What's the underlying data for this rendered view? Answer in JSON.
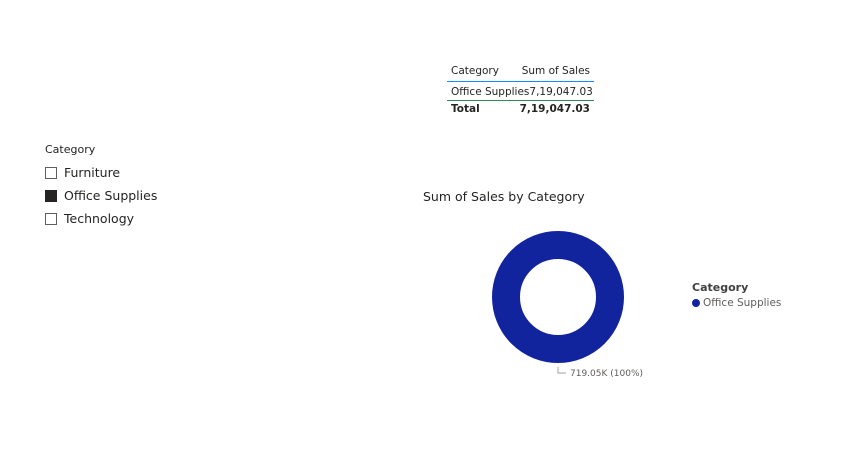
{
  "slicer": {
    "title": "Category",
    "items": [
      {
        "label": "Furniture",
        "checked": false
      },
      {
        "label": "Office Supplies",
        "checked": true
      },
      {
        "label": "Technology",
        "checked": false
      }
    ]
  },
  "table": {
    "headers": [
      "Category",
      "Sum of Sales"
    ],
    "rows": [
      [
        "Office Supplies",
        "7,19,047.03"
      ]
    ],
    "total": [
      "Total",
      "7,19,047.03"
    ]
  },
  "chart_data": {
    "type": "pie",
    "title": "Sum of Sales by Category",
    "legend_title": "Category",
    "legend_position": "right",
    "categories": [
      "Office Supplies"
    ],
    "values": [
      719047.03
    ],
    "data_labels": [
      "719.05K (100%)"
    ],
    "colors": [
      "#12239e"
    ]
  }
}
